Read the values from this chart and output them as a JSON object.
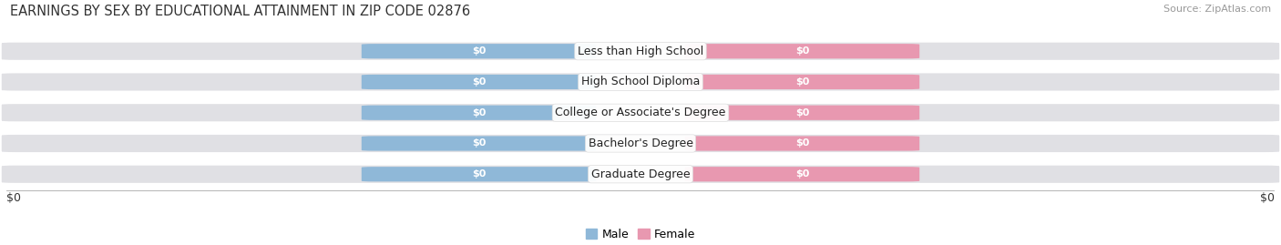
{
  "title": "EARNINGS BY SEX BY EDUCATIONAL ATTAINMENT IN ZIP CODE 02876",
  "source": "Source: ZipAtlas.com",
  "categories": [
    "Less than High School",
    "High School Diploma",
    "College or Associate's Degree",
    "Bachelor's Degree",
    "Graduate Degree"
  ],
  "male_color": "#8fb8d8",
  "female_color": "#e898b0",
  "bar_bg_color": "#e0e0e4",
  "bar_bg_edge": "#cccccc",
  "label_bg_color": "#f8f8f8",
  "xlabel_left": "$0",
  "xlabel_right": "$0",
  "legend_male": "Male",
  "legend_female": "Female",
  "title_fontsize": 10.5,
  "source_fontsize": 8,
  "tick_fontsize": 9,
  "bar_label_fontsize": 8,
  "cat_label_fontsize": 9,
  "background_color": "#ffffff",
  "bar_bg_alpha": 1.0,
  "n_categories": 5
}
